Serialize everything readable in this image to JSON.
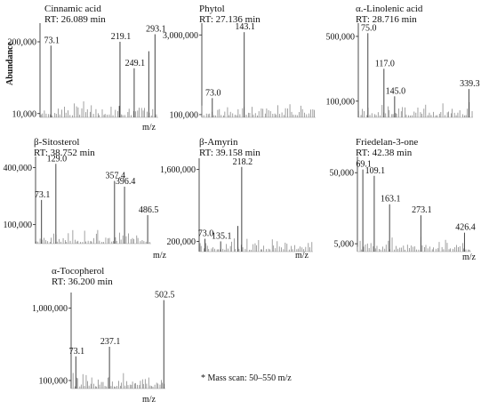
{
  "figure": {
    "ylabel": "Abundance",
    "note": "* Mass scan: 50–550 m/z"
  },
  "chart_data": [
    {
      "type": "bar",
      "title": "Cinnamic acid",
      "subtitle": "RT: 26.089 min",
      "xlabel": "m/z",
      "xlim": [
        50,
        300
      ],
      "yticks": [
        "200,000",
        "10,000"
      ],
      "ytick_values": [
        200000,
        10000
      ],
      "ylim": [
        0,
        240000
      ],
      "peaks": [
        {
          "mz": 73.1,
          "intensity": 190000,
          "label": "73.1"
        },
        {
          "mz": 219.1,
          "intensity": 200000,
          "label": "219.1"
        },
        {
          "mz": 249.1,
          "intensity": 130000,
          "label": "249.1"
        },
        {
          "mz": 293.1,
          "intensity": 220000,
          "label": "293.1"
        },
        {
          "mz": 218.0,
          "intensity": 30000,
          "label": ""
        },
        {
          "mz": 280.0,
          "intensity": 175000,
          "label": ""
        }
      ]
    },
    {
      "type": "bar",
      "title": "Phytol",
      "subtitle": "RT: 27.136 min",
      "xlabel": "",
      "xlim": [
        50,
        300
      ],
      "yticks": [
        "3,000,000",
        "100,000"
      ],
      "ytick_values": [
        3000000,
        100000
      ],
      "ylim": [
        0,
        3300000
      ],
      "peaks": [
        {
          "mz": 73.0,
          "intensity": 700000,
          "label": "73.0"
        },
        {
          "mz": 143.1,
          "intensity": 3100000,
          "label": "143.1"
        }
      ]
    },
    {
      "type": "bar",
      "title": "α.-Linolenic acid",
      "subtitle": "RT: 28.716 min",
      "xlabel": "",
      "xlim": [
        50,
        350
      ],
      "yticks": [
        "500,000",
        "100,000"
      ],
      "ytick_values": [
        500000,
        100000
      ],
      "ylim": [
        0,
        560000
      ],
      "peaks": [
        {
          "mz": 75.0,
          "intensity": 520000,
          "label": "75.0"
        },
        {
          "mz": 117.0,
          "intensity": 300000,
          "label": "117.0"
        },
        {
          "mz": 145.0,
          "intensity": 130000,
          "label": "145.0"
        },
        {
          "mz": 339.3,
          "intensity": 175000,
          "label": "339.3"
        }
      ]
    },
    {
      "type": "bar",
      "title": "β-Sitosterol",
      "subtitle": "RT: 38.752 min",
      "xlabel": "m/z",
      "xlim": [
        50,
        500
      ],
      "yticks": [
        "400,000",
        "100,000"
      ],
      "ytick_values": [
        400000,
        100000
      ],
      "ylim": [
        0,
        440000
      ],
      "peaks": [
        {
          "mz": 73.1,
          "intensity": 230000,
          "label": "73.1"
        },
        {
          "mz": 129.0,
          "intensity": 420000,
          "label": "129.0"
        },
        {
          "mz": 357.4,
          "intensity": 330000,
          "label": "357.4"
        },
        {
          "mz": 396.4,
          "intensity": 300000,
          "label": "396.4"
        },
        {
          "mz": 486.5,
          "intensity": 150000,
          "label": "486.5"
        }
      ]
    },
    {
      "type": "bar",
      "title": "β-Amyrin",
      "subtitle": "RT: 39.158 min",
      "xlabel": "m/z",
      "xlim": [
        50,
        500
      ],
      "yticks": [
        "1,600,000",
        "200,000"
      ],
      "ytick_values": [
        1600000,
        200000
      ],
      "ylim": [
        0,
        1750000
      ],
      "peaks": [
        {
          "mz": 73.0,
          "intensity": 250000,
          "label": "73.0"
        },
        {
          "mz": 135.1,
          "intensity": 200000,
          "label": "135.1"
        },
        {
          "mz": 218.2,
          "intensity": 1650000,
          "label": "218.2"
        },
        {
          "mz": 203.0,
          "intensity": 500000,
          "label": ""
        }
      ]
    },
    {
      "type": "bar",
      "title": "Friedelan-3-one",
      "subtitle": "RT: 42.38 min",
      "xlabel": "m/z",
      "xlim": [
        50,
        450
      ],
      "yticks": [
        "50,000",
        "5,000"
      ],
      "ytick_values": [
        50000,
        5000
      ],
      "ylim": [
        0,
        58000
      ],
      "peaks": [
        {
          "mz": 69.1,
          "intensity": 52000,
          "label": "69.1"
        },
        {
          "mz": 109.1,
          "intensity": 48000,
          "label": "109.1"
        },
        {
          "mz": 163.1,
          "intensity": 30000,
          "label": "163.1"
        },
        {
          "mz": 273.1,
          "intensity": 23000,
          "label": "273.1"
        },
        {
          "mz": 426.4,
          "intensity": 12000,
          "label": "426.4"
        }
      ]
    },
    {
      "type": "bar",
      "title": "α-Tocopherol",
      "subtitle": "RT: 36.200 min",
      "xlabel": "m/z",
      "xlim": [
        50,
        510
      ],
      "yticks": [
        "1,000,000",
        "100,000"
      ],
      "ytick_values": [
        1000000,
        100000
      ],
      "ylim": [
        0,
        1150000
      ],
      "peaks": [
        {
          "mz": 73.1,
          "intensity": 400000,
          "label": "73.1"
        },
        {
          "mz": 237.1,
          "intensity": 520000,
          "label": "237.1"
        },
        {
          "mz": 502.5,
          "intensity": 1100000,
          "label": "502.5"
        }
      ]
    }
  ]
}
